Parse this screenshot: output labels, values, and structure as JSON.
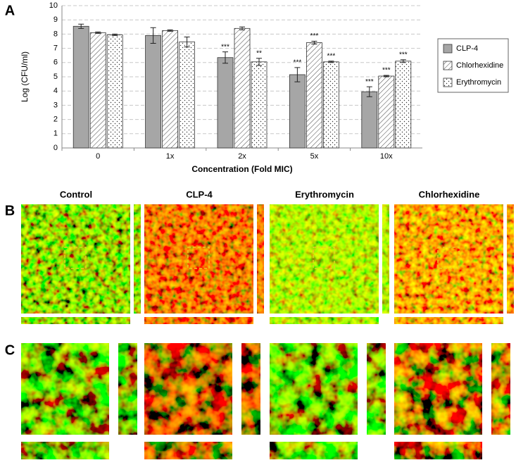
{
  "chart_data": {
    "type": "bar",
    "ylabel": "Log (CFU/ml)",
    "xlabel": "Concentration (Fold MIC)",
    "categories": [
      "0",
      "1x",
      "2x",
      "5x",
      "10x"
    ],
    "series": [
      {
        "name": "CLP-4",
        "color": "#a6a6a6",
        "pattern": "solid",
        "values": [
          8.55,
          7.9,
          6.35,
          5.15,
          3.95
        ],
        "errors": [
          0.15,
          0.55,
          0.4,
          0.5,
          0.35
        ],
        "annotations": [
          null,
          null,
          "***",
          "***",
          "***"
        ]
      },
      {
        "name": "Chlorhexidine",
        "color": "#ffffff",
        "pattern": "hatch",
        "values": [
          8.1,
          8.25,
          8.4,
          7.4,
          5.05
        ],
        "errors": [
          0.05,
          0.05,
          0.1,
          0.1,
          0.05
        ],
        "annotations": [
          null,
          null,
          null,
          "***",
          "***"
        ]
      },
      {
        "name": "Erythromycin",
        "color": "#ffffff",
        "pattern": "dots",
        "values": [
          7.95,
          7.45,
          6.05,
          6.05,
          6.1
        ],
        "errors": [
          0.05,
          0.35,
          0.25,
          0.05,
          0.1
        ],
        "annotations": [
          null,
          null,
          "**",
          "***",
          "***"
        ]
      }
    ],
    "ylim": [
      0,
      10
    ],
    "yticks": [
      0,
      1,
      2,
      3,
      4,
      5,
      6,
      7,
      8,
      9,
      10
    ],
    "grid": true,
    "legend": "right"
  },
  "panel_labels": [
    "A",
    "B",
    "C"
  ],
  "columns": [
    "Control",
    "CLP-4",
    "Erythromycin",
    "Chlorhexidine"
  ]
}
